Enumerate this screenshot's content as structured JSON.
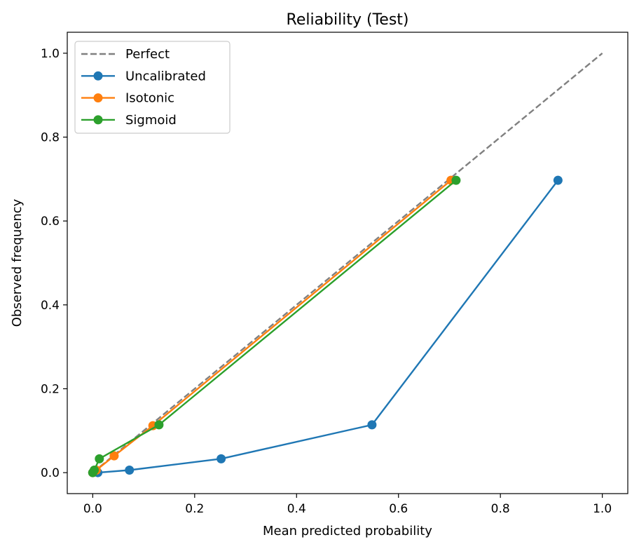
{
  "chart_data": {
    "type": "line",
    "title": "Reliability (Test)",
    "xlabel": "Mean predicted probability",
    "ylabel": "Observed frequency",
    "xlim": [
      -0.05,
      1.05
    ],
    "ylim": [
      -0.05,
      1.05
    ],
    "xticks": [
      0.0,
      0.2,
      0.4,
      0.6,
      0.8,
      1.0
    ],
    "yticks": [
      0.0,
      0.2,
      0.4,
      0.6,
      0.8,
      1.0
    ],
    "xtick_labels": [
      "0.0",
      "0.2",
      "0.4",
      "0.6",
      "0.8",
      "1.0"
    ],
    "ytick_labels": [
      "0.0",
      "0.2",
      "0.4",
      "0.6",
      "0.8",
      "1.0"
    ],
    "grid": false,
    "legend_position": "top-left",
    "series": [
      {
        "name": "Perfect",
        "style": "dashed",
        "markers": false,
        "color": "#808080",
        "x": [
          0.0,
          1.0
        ],
        "y": [
          0.0,
          1.0
        ]
      },
      {
        "name": "Uncalibrated",
        "style": "solid",
        "markers": true,
        "color": "#1f77b4",
        "x": [
          0.0,
          0.01,
          0.072,
          0.252,
          0.548,
          0.913
        ],
        "y": [
          0.0,
          0.0,
          0.006,
          0.033,
          0.114,
          0.697
        ]
      },
      {
        "name": "Isotonic",
        "style": "solid",
        "markers": true,
        "color": "#ff7f0e",
        "x": [
          0.0,
          0.007,
          0.042,
          0.118,
          0.703
        ],
        "y": [
          0.0,
          0.006,
          0.04,
          0.112,
          0.697
        ]
      },
      {
        "name": "Sigmoid",
        "style": "solid",
        "markers": true,
        "color": "#2ca02c",
        "x": [
          0.0,
          0.003,
          0.013,
          0.13,
          0.713
        ],
        "y": [
          0.0,
          0.006,
          0.033,
          0.114,
          0.697
        ]
      }
    ]
  }
}
